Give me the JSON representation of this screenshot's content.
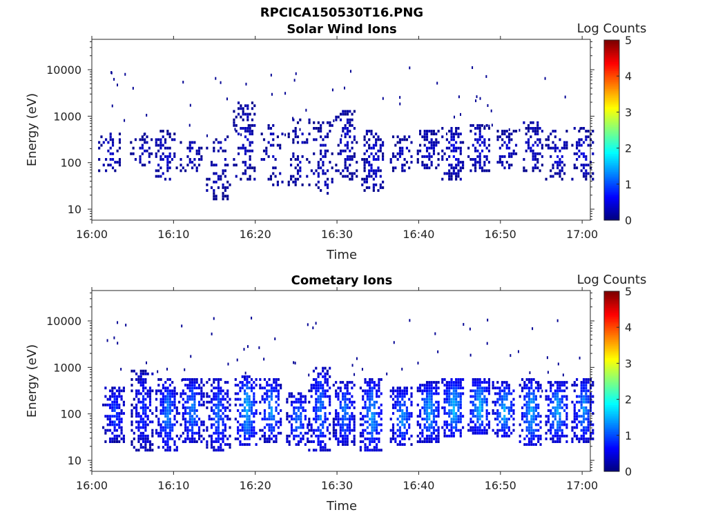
{
  "figure_title": "RPCICA150530T16.PNG",
  "chart_data": [
    {
      "type": "heatmap",
      "title": "Solar Wind Ions",
      "xlabel": "Time",
      "ylabel": "Energy (eV)",
      "x_ticks": [
        "16:00",
        "16:10",
        "16:20",
        "16:30",
        "16:40",
        "16:50",
        "17:00"
      ],
      "y_ticks": [
        "10",
        "100",
        "1000",
        "10000"
      ],
      "y_scale": "log",
      "y_range": [
        5.8,
        45000
      ],
      "x_range": [
        "16:00",
        "17:01"
      ],
      "colorbar": {
        "label": "Log Counts",
        "ticks": [
          "0",
          "1",
          "2",
          "3",
          "4",
          "5"
        ],
        "range": [
          0,
          5
        ],
        "colormap": "jet"
      },
      "bursts": [
        {
          "t": 2.3,
          "lo": 60,
          "hi": 450,
          "lvl": 0.35,
          "dens": 0.45
        },
        {
          "t": 6.2,
          "lo": 80,
          "hi": 450,
          "lvl": 0.3,
          "dens": 0.35
        },
        {
          "t": 9.0,
          "lo": 40,
          "hi": 500,
          "lvl": 0.35,
          "dens": 0.45
        },
        {
          "t": 12.3,
          "lo": 60,
          "hi": 350,
          "lvl": 0.35,
          "dens": 0.45
        },
        {
          "t": 15.5,
          "lo": 15,
          "hi": 400,
          "lvl": 0.3,
          "dens": 0.3
        },
        {
          "t": 18.8,
          "lo": 40,
          "hi": 2000,
          "lvl": 0.35,
          "dens": 0.45
        },
        {
          "t": 22.2,
          "lo": 30,
          "hi": 700,
          "lvl": 0.3,
          "dens": 0.35
        },
        {
          "t": 25.5,
          "lo": 30,
          "hi": 900,
          "lvl": 0.3,
          "dens": 0.3
        },
        {
          "t": 28.3,
          "lo": 20,
          "hi": 800,
          "lvl": 0.3,
          "dens": 0.35
        },
        {
          "t": 31.3,
          "lo": 40,
          "hi": 1500,
          "lvl": 0.35,
          "dens": 0.45
        },
        {
          "t": 34.5,
          "lo": 25,
          "hi": 500,
          "lvl": 0.4,
          "dens": 0.55
        },
        {
          "t": 38.0,
          "lo": 60,
          "hi": 400,
          "lvl": 0.35,
          "dens": 0.45
        },
        {
          "t": 41.3,
          "lo": 70,
          "hi": 500,
          "lvl": 0.4,
          "dens": 0.55
        },
        {
          "t": 44.3,
          "lo": 40,
          "hi": 600,
          "lvl": 0.45,
          "dens": 0.65
        },
        {
          "t": 47.5,
          "lo": 60,
          "hi": 700,
          "lvl": 0.45,
          "dens": 0.65
        },
        {
          "t": 50.8,
          "lo": 70,
          "hi": 500,
          "lvl": 0.4,
          "dens": 0.5
        },
        {
          "t": 54.0,
          "lo": 60,
          "hi": 800,
          "lvl": 0.4,
          "dens": 0.55
        },
        {
          "t": 57.0,
          "lo": 40,
          "hi": 500,
          "lvl": 0.4,
          "dens": 0.5
        },
        {
          "t": 60.2,
          "lo": 40,
          "hi": 600,
          "lvl": 0.4,
          "dens": 0.5
        }
      ]
    },
    {
      "type": "heatmap",
      "title": "Cometary Ions",
      "xlabel": "Time",
      "ylabel": "Energy (eV)",
      "x_ticks": [
        "16:00",
        "16:10",
        "16:20",
        "16:30",
        "16:40",
        "16:50",
        "17:00"
      ],
      "y_ticks": [
        "10",
        "100",
        "1000",
        "10000"
      ],
      "y_scale": "log",
      "y_range": [
        5.8,
        45000
      ],
      "x_range": [
        "16:00",
        "17:01"
      ],
      "colorbar": {
        "label": "Log Counts",
        "ticks": [
          "0",
          "1",
          "2",
          "3",
          "4",
          "5"
        ],
        "range": [
          0,
          5
        ],
        "colormap": "jet"
      },
      "bursts": [
        {
          "t": 2.8,
          "lo": 25,
          "hi": 400,
          "lvl": 0.9,
          "dens": 0.75
        },
        {
          "t": 6.3,
          "lo": 15,
          "hi": 900,
          "lvl": 0.8,
          "dens": 0.7
        },
        {
          "t": 9.3,
          "lo": 15,
          "hi": 600,
          "lvl": 1.2,
          "dens": 0.85
        },
        {
          "t": 12.3,
          "lo": 25,
          "hi": 600,
          "lvl": 1.25,
          "dens": 0.85
        },
        {
          "t": 15.5,
          "lo": 15,
          "hi": 600,
          "lvl": 1.1,
          "dens": 0.8
        },
        {
          "t": 19.0,
          "lo": 20,
          "hi": 700,
          "lvl": 1.5,
          "dens": 0.85
        },
        {
          "t": 22.0,
          "lo": 25,
          "hi": 600,
          "lvl": 1.3,
          "dens": 0.8
        },
        {
          "t": 25.3,
          "lo": 20,
          "hi": 300,
          "lvl": 1.2,
          "dens": 0.75
        },
        {
          "t": 28.0,
          "lo": 15,
          "hi": 1000,
          "lvl": 1.2,
          "dens": 0.8
        },
        {
          "t": 31.0,
          "lo": 20,
          "hi": 500,
          "lvl": 1.2,
          "dens": 0.8
        },
        {
          "t": 34.3,
          "lo": 15,
          "hi": 600,
          "lvl": 1.4,
          "dens": 0.85
        },
        {
          "t": 38.0,
          "lo": 20,
          "hi": 400,
          "lvl": 1.3,
          "dens": 0.8
        },
        {
          "t": 41.3,
          "lo": 25,
          "hi": 500,
          "lvl": 1.45,
          "dens": 0.85
        },
        {
          "t": 44.3,
          "lo": 30,
          "hi": 600,
          "lvl": 1.55,
          "dens": 0.9
        },
        {
          "t": 47.5,
          "lo": 35,
          "hi": 600,
          "lvl": 1.55,
          "dens": 0.9
        },
        {
          "t": 50.5,
          "lo": 30,
          "hi": 500,
          "lvl": 1.45,
          "dens": 0.85
        },
        {
          "t": 53.8,
          "lo": 20,
          "hi": 600,
          "lvl": 1.45,
          "dens": 0.85
        },
        {
          "t": 57.0,
          "lo": 25,
          "hi": 500,
          "lvl": 1.45,
          "dens": 0.85
        },
        {
          "t": 60.2,
          "lo": 25,
          "hi": 600,
          "lvl": 1.35,
          "dens": 0.8
        }
      ]
    }
  ]
}
